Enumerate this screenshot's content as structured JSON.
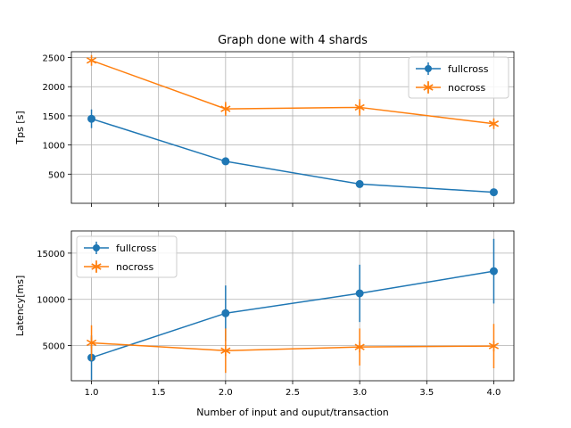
{
  "chart_data": {
    "title": "Graph done with 4 shards",
    "shared_x": {
      "xlabel": "Number of input and ouput/transaction",
      "xlim": [
        0.85,
        4.15
      ],
      "xticks": [
        1.0,
        1.5,
        2.0,
        2.5,
        3.0,
        3.5,
        4.0
      ],
      "xtick_labels": [
        "1.0",
        "1.5",
        "2.0",
        "2.5",
        "3.0",
        "3.5",
        "4.0"
      ]
    },
    "subplots": [
      {
        "type": "line",
        "ylabel": "Tps [s]",
        "ylim": [
          0,
          2600
        ],
        "yticks": [
          500,
          1000,
          1500,
          2000,
          2500
        ],
        "ytick_labels": [
          "500",
          "1000",
          "1500",
          "2000",
          "2500"
        ],
        "grid": true,
        "legend_position": "top-right",
        "series": [
          {
            "name": "fullcross",
            "color": "#1f77b4",
            "marker": "circle",
            "x": [
              1,
              2,
              3,
              4
            ],
            "y": [
              1450,
              720,
              330,
              190
            ],
            "yerr": [
              160,
              60,
              30,
              15
            ]
          },
          {
            "name": "nocross",
            "color": "#ff7f0e",
            "marker": "star",
            "x": [
              1,
              2,
              3,
              4
            ],
            "y": [
              2450,
              1620,
              1645,
              1365
            ],
            "yerr": [
              20,
              120,
              140,
              50
            ]
          }
        ]
      },
      {
        "type": "line",
        "ylabel": "Latency[ms]",
        "ylim": [
          1200,
          17400
        ],
        "yticks": [
          5000,
          10000,
          15000
        ],
        "ytick_labels": [
          "5000",
          "10000",
          "15000"
        ],
        "grid": true,
        "legend_position": "top-left",
        "series": [
          {
            "name": "fullcross",
            "color": "#1f77b4",
            "marker": "circle",
            "x": [
              1,
              2,
              3,
              4
            ],
            "y": [
              3700,
              8500,
              10650,
              13050
            ],
            "yerr": [
              2400,
              3000,
              3100,
              3500
            ]
          },
          {
            "name": "nocross",
            "color": "#ff7f0e",
            "marker": "star",
            "x": [
              1,
              2,
              3,
              4
            ],
            "y": [
              5300,
              4450,
              4850,
              4950
            ],
            "yerr": [
              1900,
              2400,
              2000,
              2400
            ]
          }
        ]
      }
    ]
  }
}
